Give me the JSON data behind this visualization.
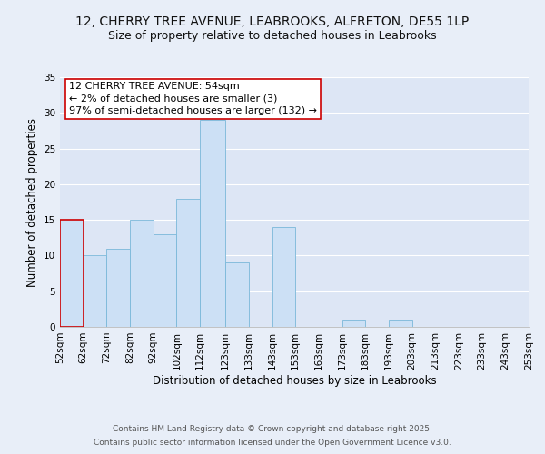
{
  "title_line1": "12, CHERRY TREE AVENUE, LEABROOKS, ALFRETON, DE55 1LP",
  "title_line2": "Size of property relative to detached houses in Leabrooks",
  "xlabel": "Distribution of detached houses by size in Leabrooks",
  "ylabel": "Number of detached properties",
  "bin_labels": [
    "52sqm",
    "62sqm",
    "72sqm",
    "82sqm",
    "92sqm",
    "102sqm",
    "112sqm",
    "123sqm",
    "133sqm",
    "143sqm",
    "153sqm",
    "163sqm",
    "173sqm",
    "183sqm",
    "193sqm",
    "203sqm",
    "213sqm",
    "223sqm",
    "233sqm",
    "243sqm",
    "253sqm"
  ],
  "bin_edges": [
    52,
    62,
    72,
    82,
    92,
    102,
    112,
    123,
    133,
    143,
    153,
    163,
    173,
    183,
    193,
    203,
    213,
    223,
    233,
    243,
    253
  ],
  "bar_values": [
    15,
    10,
    11,
    15,
    13,
    18,
    29,
    9,
    0,
    14,
    0,
    0,
    1,
    0,
    1,
    0,
    0,
    0,
    0,
    0
  ],
  "bar_color": "#cce0f5",
  "bar_edge_color": "#7ab8d9",
  "highlight_bar_index": 0,
  "highlight_color": "#cc0000",
  "ylim": [
    0,
    35
  ],
  "yticks": [
    0,
    5,
    10,
    15,
    20,
    25,
    30,
    35
  ],
  "annotation_title": "12 CHERRY TREE AVENUE: 54sqm",
  "annotation_line1": "← 2% of detached houses are smaller (3)",
  "annotation_line2": "97% of semi-detached houses are larger (132) →",
  "annotation_box_color": "#ffffff",
  "annotation_box_edge_color": "#cc0000",
  "footer_line1": "Contains HM Land Registry data © Crown copyright and database right 2025.",
  "footer_line2": "Contains public sector information licensed under the Open Government Licence v3.0.",
  "background_color": "#e8eef8",
  "plot_bg_color": "#dde6f5",
  "grid_color": "#ffffff",
  "title_fontsize": 10,
  "subtitle_fontsize": 9,
  "axis_label_fontsize": 8.5,
  "tick_fontsize": 7.5,
  "annotation_fontsize": 8,
  "footer_fontsize": 6.5
}
